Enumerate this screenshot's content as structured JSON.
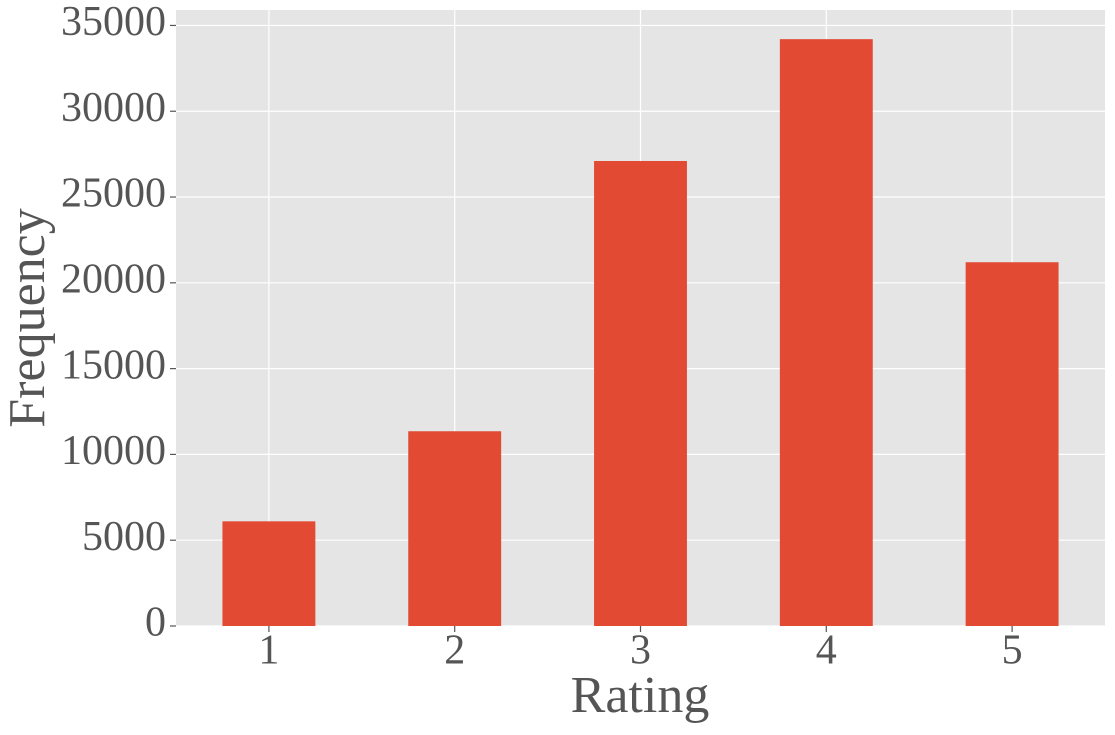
{
  "chart_data": {
    "type": "bar",
    "x_label": "Rating",
    "y_label": "Frequency",
    "categories": [
      "1",
      "2",
      "3",
      "4",
      "5"
    ],
    "values": [
      6100,
      11350,
      27100,
      34200,
      21200
    ],
    "color": "#E24A33",
    "ylim": [
      0,
      35900
    ],
    "yticks": [
      0,
      5000,
      10000,
      15000,
      20000,
      25000,
      30000,
      35000
    ],
    "grid": true
  }
}
